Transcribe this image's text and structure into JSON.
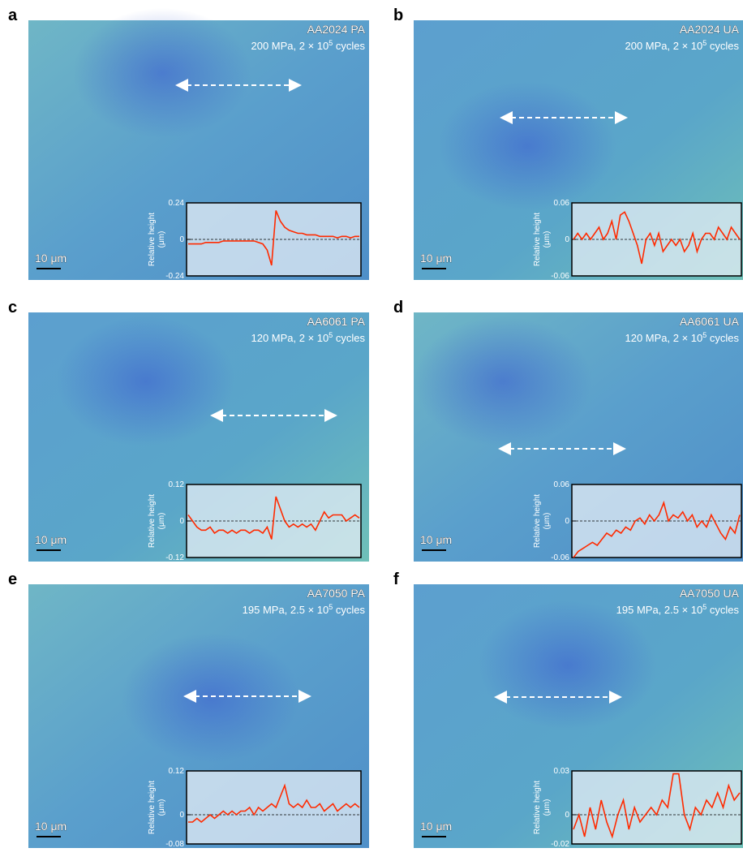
{
  "chart_data": [
    {
      "type": "line",
      "panel_label": "a",
      "title": "AA2024 PA",
      "condition": "200 MPa, 2 × 10",
      "exponent": "5",
      "condition_suffix": " cycles",
      "scale_bar": "10 μm",
      "y_label": "Relative height",
      "y_unit": "(μm)",
      "ylim": [
        -0.24,
        0.24
      ],
      "yticks": [
        -0.24,
        0,
        0.24
      ],
      "color": "#ff2a00",
      "values": [
        -0.03,
        -0.03,
        -0.03,
        -0.03,
        -0.02,
        -0.02,
        -0.02,
        -0.02,
        -0.01,
        -0.01,
        -0.01,
        -0.01,
        -0.01,
        -0.01,
        -0.01,
        -0.01,
        -0.02,
        -0.03,
        -0.07,
        -0.17,
        0.19,
        0.12,
        0.08,
        0.06,
        0.05,
        0.04,
        0.04,
        0.03,
        0.03,
        0.03,
        0.02,
        0.02,
        0.02,
        0.02,
        0.01,
        0.02,
        0.02,
        0.01,
        0.02,
        0.02
      ]
    },
    {
      "type": "line",
      "panel_label": "b",
      "title": "AA2024 UA",
      "condition": "200 MPa, 2 × 10",
      "exponent": "5",
      "condition_suffix": " cycles",
      "scale_bar": "10 μm",
      "y_label": "Relative height",
      "y_unit": "(μm)",
      "ylim": [
        -0.06,
        0.06
      ],
      "yticks": [
        -0.06,
        0,
        0.06
      ],
      "color": "#ff2a00",
      "values": [
        0.0,
        0.01,
        0.0,
        0.01,
        0.0,
        0.01,
        0.02,
        0.0,
        0.01,
        0.03,
        0.0,
        0.04,
        0.045,
        0.03,
        0.01,
        -0.01,
        -0.04,
        0.0,
        0.01,
        -0.01,
        0.01,
        -0.02,
        -0.01,
        0.0,
        -0.01,
        0.0,
        -0.02,
        -0.01,
        0.01,
        -0.02,
        0.0,
        0.01,
        0.01,
        0.0,
        0.02,
        0.01,
        0.0,
        0.02,
        0.01,
        0.0
      ]
    },
    {
      "type": "line",
      "panel_label": "c",
      "title": "AA6061 PA",
      "condition": "120 MPa, 2 × 10",
      "exponent": "5",
      "condition_suffix": " cycles",
      "scale_bar": "10 μm",
      "y_label": "Relative height",
      "y_unit": "(μm)",
      "ylim": [
        -0.12,
        0.12
      ],
      "yticks": [
        -0.12,
        0,
        0.12
      ],
      "color": "#ff2a00",
      "values": [
        0.02,
        0.0,
        -0.02,
        -0.03,
        -0.03,
        -0.02,
        -0.04,
        -0.03,
        -0.03,
        -0.04,
        -0.03,
        -0.04,
        -0.03,
        -0.03,
        -0.04,
        -0.03,
        -0.03,
        -0.04,
        -0.02,
        -0.06,
        0.08,
        0.04,
        0.0,
        -0.02,
        -0.01,
        -0.02,
        -0.01,
        -0.02,
        -0.01,
        -0.03,
        0.0,
        0.03,
        0.01,
        0.02,
        0.02,
        0.02,
        0.0,
        0.01,
        0.02,
        0.01
      ]
    },
    {
      "type": "line",
      "panel_label": "d",
      "title": "AA6061 UA",
      "condition": "120 MPa, 2 × 10",
      "exponent": "5",
      "condition_suffix": " cycles",
      "scale_bar": "10 μm",
      "y_label": "Relative height",
      "y_unit": "(μm)",
      "ylim": [
        -0.06,
        0.06
      ],
      "yticks": [
        -0.06,
        0,
        0.06
      ],
      "color": "#ff2a00",
      "values": [
        -0.06,
        -0.05,
        -0.045,
        -0.04,
        -0.035,
        -0.04,
        -0.03,
        -0.02,
        -0.025,
        -0.015,
        -0.02,
        -0.01,
        -0.015,
        0.0,
        0.005,
        -0.005,
        0.01,
        0.0,
        0.01,
        0.03,
        0.0,
        0.01,
        0.005,
        0.015,
        0.0,
        0.01,
        -0.01,
        0.0,
        -0.01,
        0.01,
        -0.005,
        -0.02,
        -0.03,
        -0.01,
        -0.02,
        0.01
      ]
    },
    {
      "type": "line",
      "panel_label": "e",
      "title": "AA7050 PA",
      "condition": "195 MPa, 2.5 × 10",
      "exponent": "5",
      "condition_suffix": " cycles",
      "scale_bar": "10 μm",
      "y_label": "Relative height",
      "y_unit": "(μm)",
      "ylim": [
        -0.08,
        0.12
      ],
      "yticks": [
        -0.08,
        0,
        0.12
      ],
      "color": "#ff2a00",
      "values": [
        -0.02,
        -0.02,
        -0.01,
        -0.02,
        -0.01,
        0.0,
        -0.01,
        0.0,
        0.01,
        0.0,
        0.01,
        0.0,
        0.01,
        0.01,
        0.02,
        0.0,
        0.02,
        0.01,
        0.02,
        0.03,
        0.02,
        0.05,
        0.08,
        0.03,
        0.02,
        0.03,
        0.02,
        0.04,
        0.02,
        0.02,
        0.03,
        0.01,
        0.02,
        0.03,
        0.01,
        0.02,
        0.03,
        0.02,
        0.03,
        0.02
      ]
    },
    {
      "type": "line",
      "panel_label": "f",
      "title": "AA7050 UA",
      "condition": "195 MPa, 2.5 × 10",
      "exponent": "5",
      "condition_suffix": " cycles",
      "scale_bar": "10 μm",
      "y_label": "Relative height",
      "y_unit": "(μm)",
      "ylim": [
        -0.02,
        0.03
      ],
      "yticks": [
        -0.02,
        0,
        0.03
      ],
      "color": "#ff2a00",
      "values": [
        -0.01,
        0.0,
        -0.015,
        0.005,
        -0.01,
        0.01,
        -0.005,
        -0.015,
        0.0,
        0.01,
        -0.01,
        0.005,
        -0.005,
        0.0,
        0.005,
        0.0,
        0.01,
        0.005,
        0.028,
        0.028,
        0.0,
        -0.01,
        0.005,
        0.0,
        0.01,
        0.005,
        0.015,
        0.005,
        0.02,
        0.01,
        0.015
      ]
    }
  ]
}
